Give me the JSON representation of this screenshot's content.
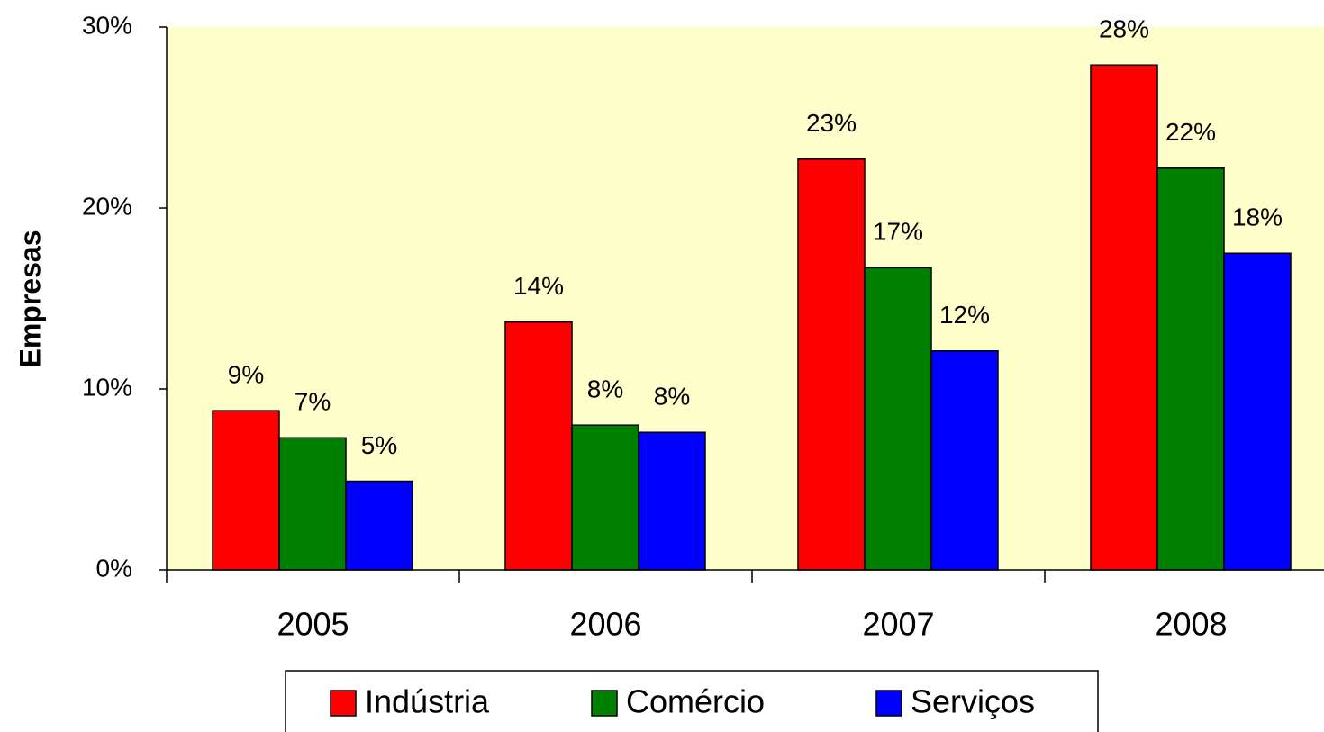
{
  "chart_data": {
    "type": "bar",
    "y_label": "Empresas",
    "categories": [
      "2005",
      "2006",
      "2007",
      "2008"
    ],
    "series": [
      {
        "name": "Indústria",
        "color": "#ff0000",
        "values": [
          8.8,
          13.7,
          22.7,
          27.9
        ],
        "value_labels": [
          "9%",
          "14%",
          "23%",
          "28%"
        ]
      },
      {
        "name": "Comércio",
        "color": "#008000",
        "values": [
          7.3,
          8.0,
          16.7,
          22.2
        ],
        "value_labels": [
          "7%",
          "8%",
          "17%",
          "22%"
        ]
      },
      {
        "name": "Serviços",
        "color": "#0000ff",
        "values": [
          4.9,
          7.6,
          12.1,
          17.5
        ],
        "value_labels": [
          "5%",
          "8%",
          "12%",
          "18%"
        ]
      }
    ],
    "ylim": [
      0,
      30
    ],
    "yticks": [
      {
        "value": 0,
        "label": "0%"
      },
      {
        "value": 10,
        "label": "10%"
      },
      {
        "value": 20,
        "label": "20%"
      },
      {
        "value": 30,
        "label": "30%"
      }
    ],
    "legend": "bottom",
    "background": "#ffffcc"
  }
}
